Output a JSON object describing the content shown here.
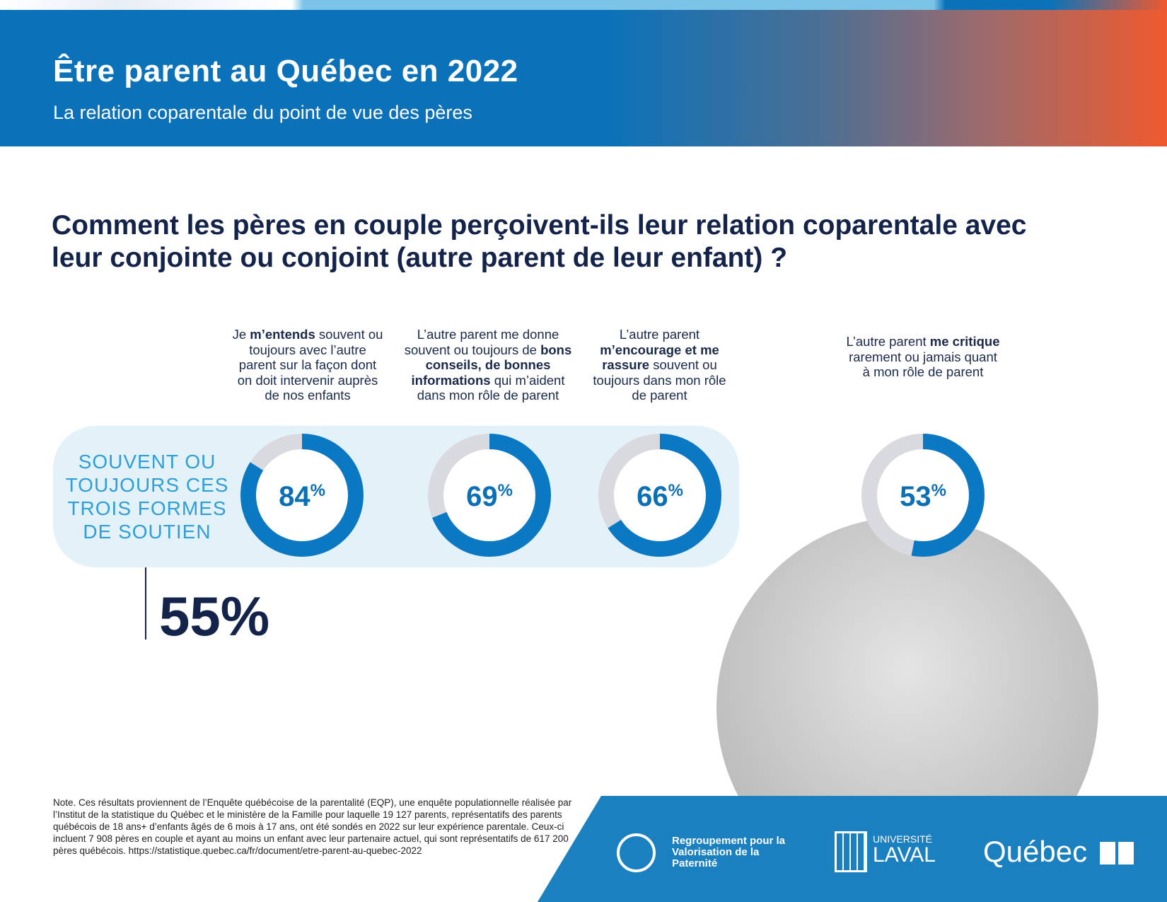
{
  "header": {
    "title": "Être parent au Québec en 2022",
    "subtitle": "La relation coparentale du point de vue des pères"
  },
  "question": "Comment les pères en couple perçoivent-ils leur relation coparentale avec leur conjointe ou conjoint (autre parent de leur enfant) ?",
  "band_label": "SOUVENT OU TOUJOURS CES TROIS FORMES DE SOUTIEN",
  "combined_value": "55%",
  "chart_data": {
    "type": "donut",
    "items": [
      {
        "label_parts": [
          [
            "Je ",
            false
          ],
          [
            "m’entends",
            true
          ],
          [
            " souvent ou toujours avec l’autre parent sur la façon dont on doit intervenir auprès de nos enfants",
            false
          ]
        ],
        "value": 84,
        "display": "84",
        "unit": "%"
      },
      {
        "label_parts": [
          [
            "L’autre parent me donne souvent ou toujours de ",
            false
          ],
          [
            "bons conseils, de bonnes informations",
            true
          ],
          [
            " qui m’aident dans mon rôle de parent",
            false
          ]
        ],
        "value": 69,
        "display": "69",
        "unit": "%"
      },
      {
        "label_parts": [
          [
            "L’autre parent ",
            false
          ],
          [
            "m’encourage et me rassure",
            true
          ],
          [
            " souvent ou toujours dans mon rôle de parent",
            false
          ]
        ],
        "value": 66,
        "display": "66",
        "unit": "%"
      },
      {
        "label_parts": [
          [
            "L’autre parent ",
            false
          ],
          [
            "me critique",
            true
          ],
          [
            " rarement ou jamais quant à mon rôle de parent",
            false
          ]
        ],
        "value": 53,
        "display": "53",
        "unit": "%"
      }
    ],
    "combined": {
      "label": "Souvent ou toujours ces trois formes de soutien",
      "value": 55
    },
    "colors": {
      "fill": "#0a78c2",
      "rest": "#d9d9e0"
    }
  },
  "note": "Note. Ces résultats proviennent de l’Enquête québécoise de la parentalité (EQP), une enquête populationnelle réalisée par l’Institut de la statistique du Québec et le ministère de la Famille pour laquelle 19 127 parents, représentatifs des parents québécois de 18 ans+ d’enfants âgés de 6 mois à 17 ans, ont été sondés en 2022 sur leur expérience parentale. Ceux-ci incluent 7 908 pères en couple et ayant au moins un enfant avec leur partenaire actuel, qui sont représentatifs de 617 200 pères québécois. https://statistique.quebec.ca/fr/document/etre-parent-au-quebec-2022",
  "logos": {
    "rvp": "Regroupement pour la Valorisation de la Paternité",
    "laval_top": "UNIVERSITÉ",
    "laval_bottom": "LAVAL",
    "quebec": "Québec"
  }
}
